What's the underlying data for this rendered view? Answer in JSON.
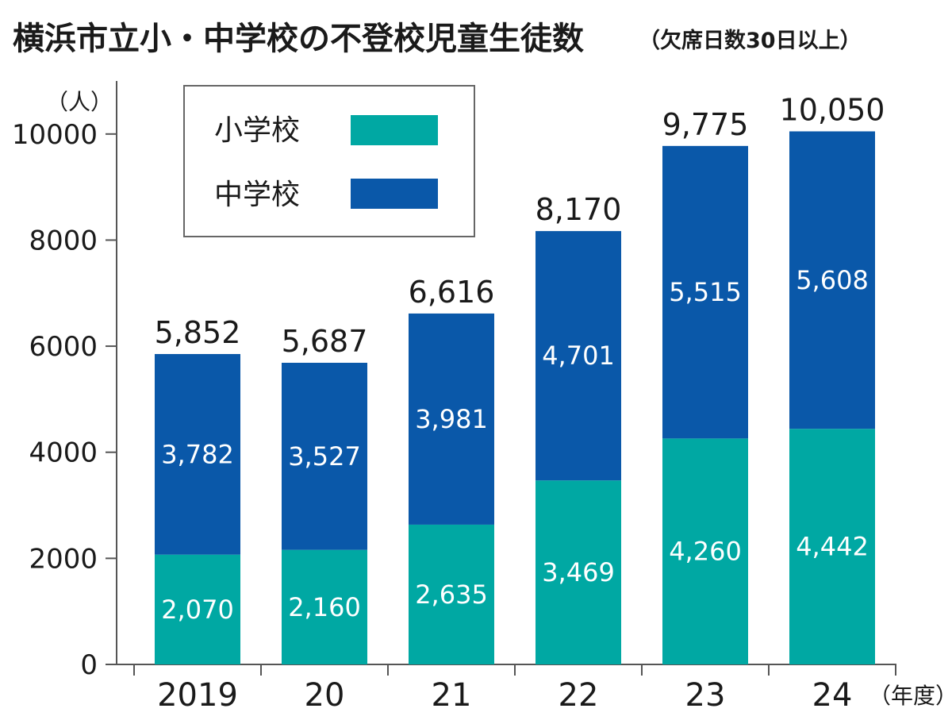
{
  "chart_data": {
    "type": "bar",
    "stacked": true,
    "title": "横浜市立小・中学校の不登校児童生徒数",
    "subtitle": "（欠席日数30日以上）",
    "ylabel": "（人）",
    "xlabel": "（年度）",
    "ylim": [
      0,
      11000
    ],
    "yticks": [
      0,
      2000,
      4000,
      6000,
      8000,
      10000
    ],
    "categories": [
      "2019",
      "20",
      "21",
      "22",
      "23",
      "24"
    ],
    "series": [
      {
        "name": "小学校",
        "color": "#00a8a3",
        "values": [
          2070,
          2160,
          2635,
          3469,
          4260,
          4442
        ],
        "labels": [
          "2,070",
          "2,160",
          "2,635",
          "3,469",
          "4,260",
          "4,442"
        ]
      },
      {
        "name": "中学校",
        "color": "#0a58a9",
        "values": [
          3782,
          3527,
          3981,
          4701,
          5515,
          5608
        ],
        "labels": [
          "3,782",
          "3,527",
          "3,981",
          "4,701",
          "5,515",
          "5,608"
        ]
      }
    ],
    "totals": [
      5852,
      5687,
      6616,
      8170,
      9775,
      10050
    ],
    "total_labels": [
      "5,852",
      "5,687",
      "6,616",
      "8,170",
      "9,775",
      "10,050"
    ],
    "legend": {
      "position": "top-left",
      "entries": [
        "小学校",
        "中学校"
      ]
    }
  }
}
